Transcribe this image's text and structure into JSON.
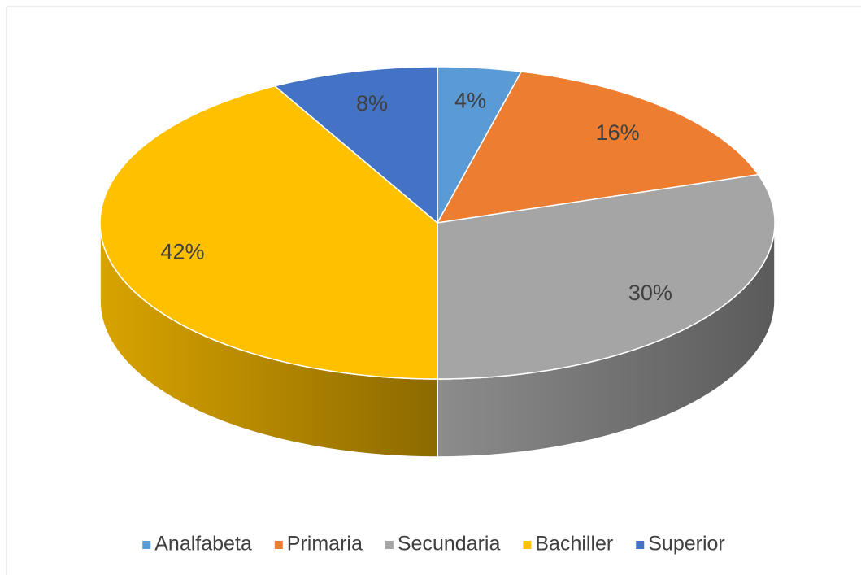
{
  "chart_data": {
    "type": "pie3d",
    "categories": [
      "Analfabeta",
      "Primaria",
      "Secundaria",
      "Bachiller",
      "Superior"
    ],
    "values": [
      4,
      16,
      30,
      42,
      8
    ],
    "value_labels": [
      "4%",
      "16%",
      "30%",
      "42%",
      "8%"
    ],
    "colors": [
      "#5b9bd5",
      "#ed7d31",
      "#a5a5a5",
      "#ffc000",
      "#4472c4"
    ],
    "legend": "bottom"
  }
}
